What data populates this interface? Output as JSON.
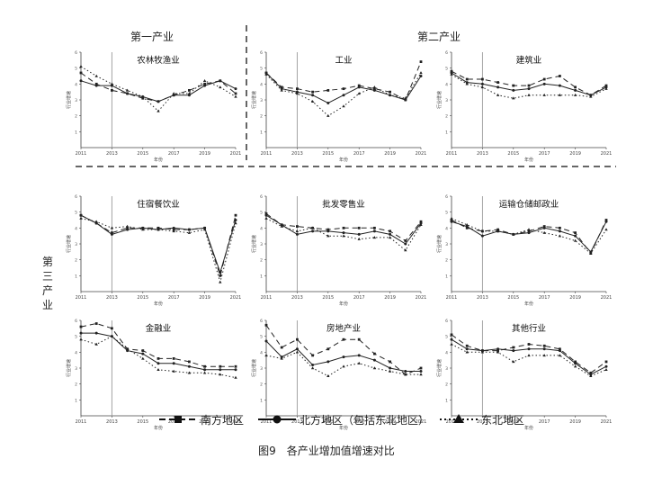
{
  "sections": {
    "primary": "第一产业",
    "secondary": "第二产业",
    "tertiary": "第三产业"
  },
  "legend": [
    {
      "label": "南方地区",
      "style": "dashed",
      "marker": "square"
    },
    {
      "label": "北方地区（包括东北地区）",
      "style": "solid",
      "marker": "circle"
    },
    {
      "label": "东北地区",
      "style": "dotted",
      "marker": "triangle"
    }
  ],
  "caption": "图9　各产业增加值增速对比",
  "colors": {
    "line": "#222222",
    "refline": "#9a9a9a",
    "divider": "#666666"
  },
  "chart_data": [
    {
      "type": "line",
      "title": "农林牧渔业",
      "xlabel": "年份",
      "ylabel": "行业增速",
      "x": [
        2011,
        2012,
        2013,
        2014,
        2015,
        2016,
        2017,
        2018,
        2019,
        2020,
        2021
      ],
      "xticks": [
        2011,
        2013,
        2015,
        2017,
        2019,
        2021
      ],
      "yticks": [
        "1",
        "2",
        "3",
        "4",
        "5",
        "6"
      ],
      "ylim": [
        0,
        6
      ],
      "vline": 2013,
      "series": [
        {
          "name": "南方地区",
          "values": [
            4.7,
            4.0,
            3.6,
            3.4,
            3.1,
            2.9,
            3.3,
            3.6,
            4.0,
            4.2,
            3.4
          ]
        },
        {
          "name": "北方地区（包括东北地区）",
          "values": [
            4.2,
            3.9,
            3.9,
            3.4,
            3.2,
            2.9,
            3.3,
            3.3,
            3.9,
            4.2,
            3.7
          ]
        },
        {
          "name": "东北地区",
          "values": [
            5.1,
            4.5,
            4.0,
            3.6,
            3.2,
            2.3,
            3.4,
            3.4,
            4.2,
            3.8,
            3.2
          ]
        }
      ]
    },
    {
      "type": "line",
      "title": "工业",
      "xlabel": "年份",
      "ylabel": "行业增速",
      "x": [
        2011,
        2012,
        2013,
        2014,
        2015,
        2016,
        2017,
        2018,
        2019,
        2020,
        2021
      ],
      "xticks": [
        2011,
        2013,
        2015,
        2017,
        2019,
        2021
      ],
      "yticks": [
        "1",
        "2",
        "3",
        "4",
        "5",
        "6"
      ],
      "ylim": [
        0,
        6
      ],
      "vline": 2013,
      "series": [
        {
          "name": "南方地区",
          "values": [
            4.7,
            3.8,
            3.7,
            3.5,
            3.6,
            3.7,
            3.9,
            3.7,
            3.5,
            3.0,
            5.4
          ]
        },
        {
          "name": "北方地区（包括东北地区）",
          "values": [
            4.7,
            3.7,
            3.5,
            3.3,
            2.8,
            3.3,
            3.8,
            3.6,
            3.3,
            3.0,
            4.5
          ]
        },
        {
          "name": "东北地区",
          "values": [
            4.6,
            3.6,
            3.4,
            2.9,
            2.0,
            2.6,
            3.4,
            3.8,
            3.3,
            3.1,
            4.7
          ]
        }
      ]
    },
    {
      "type": "line",
      "title": "建筑业",
      "xlabel": "年份",
      "ylabel": "行业增速",
      "x": [
        2011,
        2012,
        2013,
        2014,
        2015,
        2016,
        2017,
        2018,
        2019,
        2020,
        2021
      ],
      "xticks": [
        2011,
        2013,
        2015,
        2017,
        2019,
        2021
      ],
      "yticks": [
        "1",
        "2",
        "3",
        "4",
        "5",
        "6"
      ],
      "ylim": [
        0,
        6
      ],
      "vline": 2013,
      "series": [
        {
          "name": "南方地区",
          "values": [
            4.8,
            4.3,
            4.3,
            4.1,
            3.9,
            3.9,
            4.3,
            4.5,
            3.8,
            3.3,
            3.9
          ]
        },
        {
          "name": "北方地区（包括东北地区）",
          "values": [
            4.7,
            4.1,
            4.0,
            3.8,
            3.6,
            3.7,
            4.0,
            3.9,
            3.6,
            3.3,
            3.8
          ]
        },
        {
          "name": "东北地区",
          "values": [
            4.6,
            4.0,
            3.8,
            3.3,
            3.1,
            3.3,
            3.3,
            3.3,
            3.3,
            3.2,
            3.7
          ]
        }
      ]
    },
    {
      "type": "line",
      "title": "住宿餐饮业",
      "xlabel": "年份",
      "ylabel": "行业增速",
      "x": [
        2011,
        2012,
        2013,
        2014,
        2015,
        2016,
        2017,
        2018,
        2019,
        2020,
        2021
      ],
      "xticks": [
        2011,
        2013,
        2015,
        2017,
        2019,
        2021
      ],
      "yticks": [
        "1",
        "2",
        "3",
        "4",
        "5",
        "6"
      ],
      "ylim": [
        0,
        6
      ],
      "vline": 2013,
      "series": [
        {
          "name": "南方地区",
          "values": [
            4.8,
            4.3,
            3.7,
            4.0,
            4.0,
            4.0,
            3.9,
            3.9,
            4.0,
            1.0,
            4.8
          ]
        },
        {
          "name": "北方地区（包括东北地区）",
          "values": [
            4.8,
            4.3,
            3.6,
            3.9,
            4.0,
            3.9,
            4.0,
            3.9,
            4.0,
            1.2,
            4.5
          ]
        },
        {
          "name": "东北地区",
          "values": [
            4.6,
            4.4,
            4.0,
            4.1,
            3.9,
            3.9,
            3.8,
            3.7,
            3.9,
            0.6,
            4.3
          ]
        }
      ]
    },
    {
      "type": "line",
      "title": "批发零售业",
      "xlabel": "年份",
      "ylabel": "行业增速",
      "x": [
        2011,
        2012,
        2013,
        2014,
        2015,
        2016,
        2017,
        2018,
        2019,
        2020,
        2021
      ],
      "xticks": [
        2011,
        2013,
        2015,
        2017,
        2019,
        2021
      ],
      "yticks": [
        "1",
        "2",
        "3",
        "4",
        "5",
        "6"
      ],
      "ylim": [
        0,
        6
      ],
      "vline": 2013,
      "series": [
        {
          "name": "南方地区",
          "values": [
            4.9,
            4.2,
            4.1,
            4.0,
            3.9,
            4.0,
            4.0,
            4.0,
            3.8,
            3.2,
            4.4
          ]
        },
        {
          "name": "北方地区（包括东北地区）",
          "values": [
            4.8,
            4.2,
            3.6,
            3.8,
            3.8,
            3.7,
            3.6,
            3.8,
            3.6,
            3.0,
            4.3
          ]
        },
        {
          "name": "东北地区",
          "values": [
            4.6,
            4.1,
            3.8,
            4.0,
            3.5,
            3.5,
            3.3,
            3.4,
            3.4,
            2.6,
            4.2
          ]
        }
      ]
    },
    {
      "type": "line",
      "title": "运输仓储邮政业",
      "xlabel": "年份",
      "ylabel": "行业增速",
      "x": [
        2011,
        2012,
        2013,
        2014,
        2015,
        2016,
        2017,
        2018,
        2019,
        2020,
        2021
      ],
      "xticks": [
        2011,
        2013,
        2015,
        2017,
        2019,
        2021
      ],
      "yticks": [
        "1",
        "2",
        "3",
        "4",
        "5",
        "6"
      ],
      "ylim": [
        0,
        6
      ],
      "vline": 2013,
      "series": [
        {
          "name": "南方地区",
          "values": [
            4.5,
            4.0,
            3.8,
            3.9,
            3.6,
            3.8,
            4.1,
            4.0,
            3.7,
            2.4,
            4.5
          ]
        },
        {
          "name": "北方地区（包括东北地区）",
          "values": [
            4.4,
            4.1,
            3.5,
            3.8,
            3.6,
            3.7,
            4.0,
            3.8,
            3.5,
            2.5,
            4.4
          ]
        },
        {
          "name": "东北地区",
          "values": [
            4.6,
            4.2,
            3.8,
            3.8,
            3.6,
            3.9,
            3.7,
            3.5,
            3.2,
            2.4,
            3.9
          ]
        }
      ]
    },
    {
      "type": "line",
      "title": "金融业",
      "xlabel": "年份",
      "ylabel": "行业增速",
      "x": [
        2011,
        2012,
        2013,
        2014,
        2015,
        2016,
        2017,
        2018,
        2019,
        2020,
        2021
      ],
      "xticks": [
        2011,
        2013,
        2015,
        2017,
        2019,
        2021
      ],
      "yticks": [
        "1",
        "2",
        "3",
        "4",
        "5",
        "6"
      ],
      "ylim": [
        0,
        6
      ],
      "vline": 2013,
      "series": [
        {
          "name": "南方地区",
          "values": [
            5.6,
            5.8,
            5.5,
            4.2,
            4.1,
            3.6,
            3.6,
            3.4,
            3.1,
            3.1,
            3.1
          ]
        },
        {
          "name": "北方地区（包括东北地区）",
          "values": [
            5.2,
            5.2,
            5.0,
            4.1,
            3.9,
            3.3,
            3.3,
            3.1,
            2.9,
            2.9,
            2.9
          ]
        },
        {
          "name": "东北地区",
          "values": [
            4.8,
            4.5,
            5.0,
            4.2,
            3.6,
            2.9,
            2.8,
            2.7,
            2.7,
            2.6,
            2.4
          ]
        }
      ]
    },
    {
      "type": "line",
      "title": "房地产业",
      "xlabel": "年份",
      "ylabel": "行业增速",
      "x": [
        2011,
        2012,
        2013,
        2014,
        2015,
        2016,
        2017,
        2018,
        2019,
        2020,
        2021
      ],
      "xticks": [
        2011,
        2013,
        2015,
        2017,
        2019,
        2021
      ],
      "yticks": [
        "1",
        "2",
        "3",
        "4",
        "5",
        "6"
      ],
      "ylim": [
        0,
        6
      ],
      "vline": 2013,
      "series": [
        {
          "name": "南方地区",
          "values": [
            5.7,
            4.3,
            4.8,
            3.8,
            4.2,
            4.8,
            4.8,
            3.9,
            3.4,
            2.6,
            3.0
          ]
        },
        {
          "name": "北方地区（包括东北地区）",
          "values": [
            4.7,
            3.7,
            4.2,
            3.2,
            3.4,
            3.7,
            3.8,
            3.5,
            3.0,
            2.8,
            2.8
          ]
        },
        {
          "name": "东北地区",
          "values": [
            3.8,
            3.6,
            4.0,
            3.0,
            2.5,
            3.1,
            3.3,
            3.0,
            2.8,
            2.6,
            2.6
          ]
        }
      ]
    },
    {
      "type": "line",
      "title": "其他行业",
      "xlabel": "年份",
      "ylabel": "行业增速",
      "x": [
        2011,
        2012,
        2013,
        2014,
        2015,
        2016,
        2017,
        2018,
        2019,
        2020,
        2021
      ],
      "xticks": [
        2011,
        2013,
        2015,
        2017,
        2019,
        2021
      ],
      "yticks": [
        "1",
        "2",
        "3",
        "4",
        "5",
        "6"
      ],
      "ylim": [
        0,
        6
      ],
      "vline": 2013,
      "series": [
        {
          "name": "南方地区",
          "values": [
            5.1,
            4.4,
            4.1,
            4.1,
            4.3,
            4.5,
            4.4,
            4.2,
            3.4,
            2.7,
            3.4
          ]
        },
        {
          "name": "北方地区（包括东北地区）",
          "values": [
            4.8,
            4.2,
            4.1,
            4.2,
            4.1,
            4.2,
            4.2,
            4.1,
            3.3,
            2.6,
            3.1
          ]
        },
        {
          "name": "东北地区",
          "values": [
            4.5,
            4.0,
            4.0,
            4.0,
            3.4,
            3.8,
            3.8,
            3.8,
            3.1,
            2.5,
            2.9
          ]
        }
      ]
    }
  ]
}
